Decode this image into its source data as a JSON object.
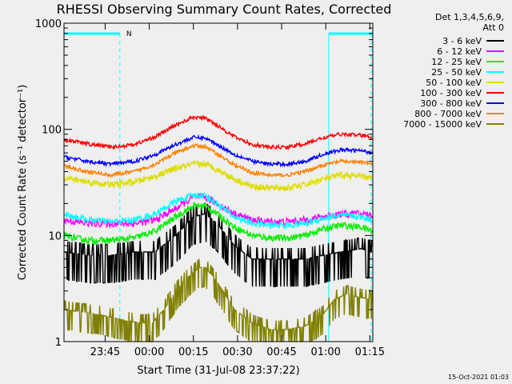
{
  "chart_data": {
    "type": "line",
    "title": "RHESSI Observing Summary Count Rates, Corrected",
    "xlabel": "Start Time (31-Jul-08 23:37:22)",
    "ylabel": "Corrected Count Rate (s⁻¹ detector⁻¹)",
    "yscale": "log",
    "ylim": [
      1,
      1000
    ],
    "xlim_minutes": [
      -6,
      99
    ],
    "x_tick_labels": [
      "23:45",
      "00:00",
      "00:15",
      "00:30",
      "00:45",
      "01:00",
      "01:15"
    ],
    "x_tick_minutes": [
      8,
      23,
      38,
      53,
      68,
      83,
      98
    ],
    "y_tick_labels": [
      "1",
      "10",
      "100",
      "1000"
    ],
    "y_tick_values": [
      1,
      10,
      100,
      1000
    ],
    "legend_header": [
      "Det 1,3,4,5,6,9,",
      "Att 0"
    ],
    "legend_position": "top-right",
    "timestamp": "15-Oct-2021 01:03",
    "night_marker": "N",
    "night_intervals_minutes": [
      [
        -6,
        13
      ],
      [
        84,
        99
      ]
    ],
    "series": [
      {
        "name": "3 - 6 keV",
        "color": "#000000",
        "noise": 0.45,
        "points": [
          [
            -6,
            7
          ],
          [
            2,
            6.5
          ],
          [
            10,
            6.5
          ],
          [
            18,
            7
          ],
          [
            25,
            7
          ],
          [
            32,
            10
          ],
          [
            38,
            15
          ],
          [
            42,
            16
          ],
          [
            46,
            13
          ],
          [
            52,
            8
          ],
          [
            58,
            6
          ],
          [
            64,
            6
          ],
          [
            70,
            6
          ],
          [
            76,
            6
          ],
          [
            82,
            6.5
          ],
          [
            88,
            7
          ],
          [
            95,
            7.5
          ],
          [
            99,
            7
          ]
        ]
      },
      {
        "name": "6 - 12 keV",
        "color": "#ff00ff",
        "noise": 0.08,
        "points": [
          [
            -6,
            14
          ],
          [
            2,
            13
          ],
          [
            10,
            13
          ],
          [
            18,
            13
          ],
          [
            25,
            14
          ],
          [
            32,
            18
          ],
          [
            38,
            23
          ],
          [
            42,
            23
          ],
          [
            46,
            20
          ],
          [
            52,
            16
          ],
          [
            58,
            14
          ],
          [
            64,
            13.5
          ],
          [
            70,
            13.5
          ],
          [
            76,
            14
          ],
          [
            82,
            15
          ],
          [
            88,
            16
          ],
          [
            95,
            16
          ],
          [
            99,
            15.5
          ]
        ]
      },
      {
        "name": "12 - 25 keV",
        "color": "#00ee00",
        "noise": 0.07,
        "points": [
          [
            -6,
            10
          ],
          [
            2,
            9
          ],
          [
            10,
            9
          ],
          [
            18,
            9.5
          ],
          [
            25,
            11
          ],
          [
            32,
            15
          ],
          [
            38,
            19
          ],
          [
            42,
            19
          ],
          [
            46,
            16
          ],
          [
            52,
            12
          ],
          [
            58,
            10
          ],
          [
            64,
            9.5
          ],
          [
            70,
            9.5
          ],
          [
            76,
            10
          ],
          [
            82,
            11.5
          ],
          [
            88,
            12.5
          ],
          [
            95,
            12
          ],
          [
            99,
            11
          ]
        ]
      },
      {
        "name": "25 - 50 keV",
        "color": "#00ffff",
        "noise": 0.07,
        "points": [
          [
            -6,
            16
          ],
          [
            2,
            14
          ],
          [
            10,
            13.5
          ],
          [
            18,
            14
          ],
          [
            25,
            16
          ],
          [
            32,
            21
          ],
          [
            38,
            24
          ],
          [
            42,
            24
          ],
          [
            46,
            20
          ],
          [
            52,
            15
          ],
          [
            58,
            13
          ],
          [
            64,
            12.5
          ],
          [
            70,
            12.5
          ],
          [
            76,
            13
          ],
          [
            82,
            14.5
          ],
          [
            88,
            15.5
          ],
          [
            95,
            15
          ],
          [
            99,
            14
          ]
        ]
      },
      {
        "name": "50 - 100 keV",
        "color": "#dddd00",
        "noise": 0.07,
        "points": [
          [
            -6,
            35
          ],
          [
            2,
            32
          ],
          [
            10,
            30
          ],
          [
            18,
            32
          ],
          [
            25,
            36
          ],
          [
            32,
            43
          ],
          [
            38,
            47
          ],
          [
            42,
            47
          ],
          [
            46,
            42
          ],
          [
            52,
            34
          ],
          [
            58,
            29
          ],
          [
            64,
            28
          ],
          [
            70,
            28
          ],
          [
            76,
            30
          ],
          [
            82,
            34
          ],
          [
            88,
            37
          ],
          [
            95,
            36
          ],
          [
            99,
            35
          ]
        ]
      },
      {
        "name": "100 - 300 keV",
        "color": "#ff0000",
        "noise": 0.04,
        "points": [
          [
            -6,
            80
          ],
          [
            2,
            73
          ],
          [
            10,
            68
          ],
          [
            18,
            72
          ],
          [
            25,
            85
          ],
          [
            32,
            110
          ],
          [
            38,
            130
          ],
          [
            42,
            128
          ],
          [
            46,
            110
          ],
          [
            52,
            85
          ],
          [
            58,
            72
          ],
          [
            64,
            68
          ],
          [
            70,
            68
          ],
          [
            76,
            73
          ],
          [
            82,
            83
          ],
          [
            88,
            90
          ],
          [
            95,
            88
          ],
          [
            99,
            84
          ]
        ]
      },
      {
        "name": "300 - 800 keV",
        "color": "#0000ff",
        "noise": 0.04,
        "points": [
          [
            -6,
            55
          ],
          [
            2,
            50
          ],
          [
            10,
            47
          ],
          [
            18,
            50
          ],
          [
            25,
            58
          ],
          [
            32,
            72
          ],
          [
            38,
            84
          ],
          [
            42,
            83
          ],
          [
            46,
            72
          ],
          [
            52,
            58
          ],
          [
            58,
            50
          ],
          [
            64,
            47
          ],
          [
            70,
            47
          ],
          [
            76,
            50
          ],
          [
            82,
            58
          ],
          [
            88,
            64
          ],
          [
            95,
            63
          ],
          [
            99,
            60
          ]
        ]
      },
      {
        "name": "800 - 7000 keV",
        "color": "#ff8000",
        "noise": 0.04,
        "points": [
          [
            -6,
            45
          ],
          [
            2,
            40
          ],
          [
            10,
            37
          ],
          [
            18,
            40
          ],
          [
            25,
            47
          ],
          [
            32,
            60
          ],
          [
            38,
            70
          ],
          [
            42,
            69
          ],
          [
            46,
            59
          ],
          [
            52,
            46
          ],
          [
            58,
            39
          ],
          [
            64,
            37
          ],
          [
            70,
            37
          ],
          [
            76,
            40
          ],
          [
            82,
            46
          ],
          [
            88,
            50
          ],
          [
            95,
            49
          ],
          [
            99,
            47
          ]
        ]
      },
      {
        "name": "7000 - 15000 keV",
        "color": "#808000",
        "noise": 0.35,
        "points": [
          [
            -6,
            2
          ],
          [
            6,
            1.8
          ],
          [
            14,
            1.6
          ],
          [
            20,
            1.5
          ],
          [
            24,
            1.5
          ],
          [
            28,
            2
          ],
          [
            32,
            3
          ],
          [
            36,
            4
          ],
          [
            40,
            5
          ],
          [
            42,
            5
          ],
          [
            45,
            4
          ],
          [
            48,
            3
          ],
          [
            52,
            2
          ],
          [
            58,
            1.5
          ],
          [
            64,
            1.3
          ],
          [
            70,
            1.3
          ],
          [
            76,
            1.4
          ],
          [
            82,
            1.8
          ],
          [
            86,
            2.5
          ],
          [
            90,
            2.8
          ],
          [
            95,
            2.6
          ],
          [
            99,
            2.5
          ]
        ]
      }
    ]
  }
}
